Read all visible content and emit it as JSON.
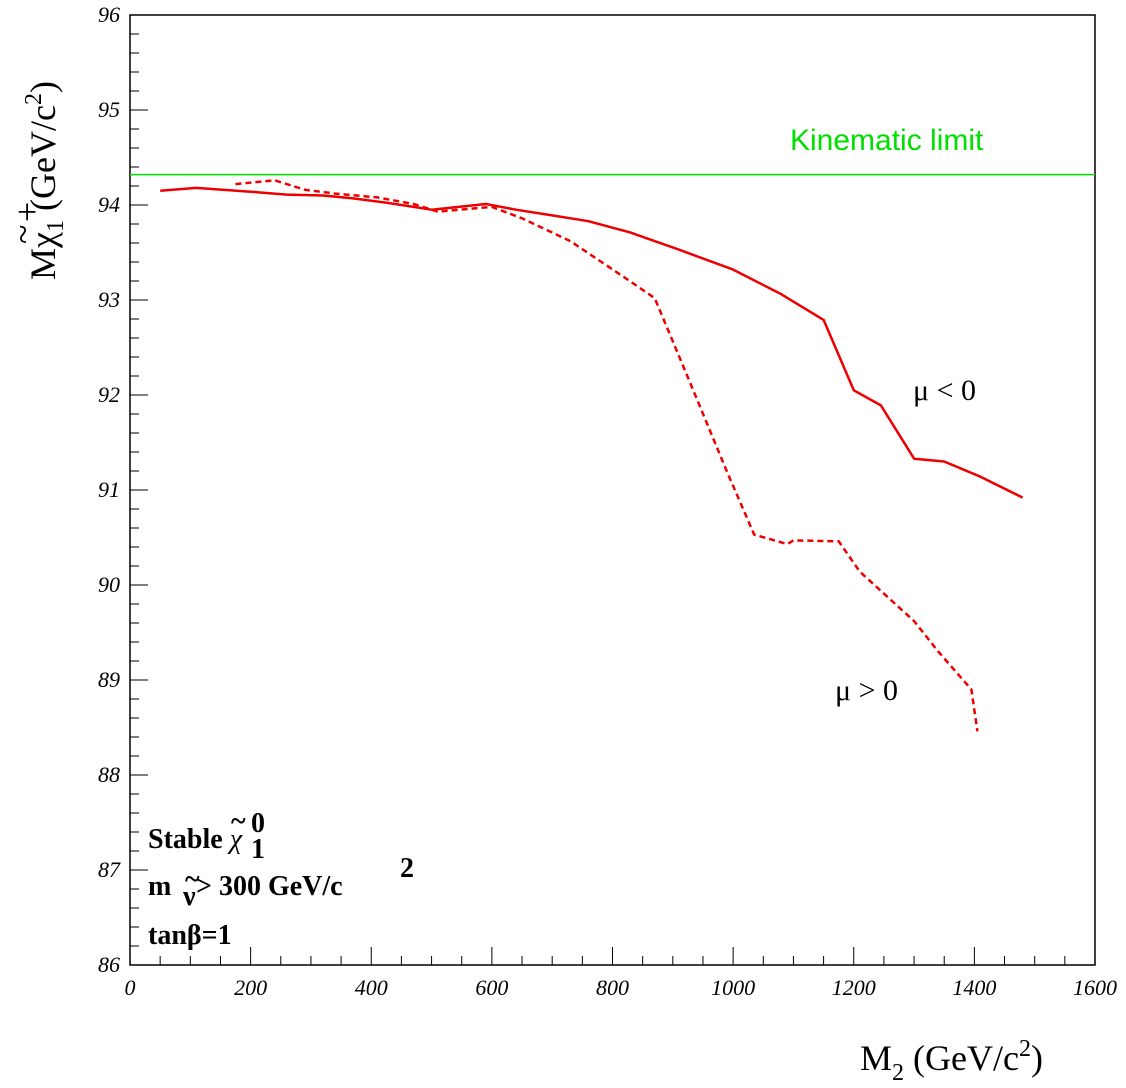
{
  "chart_data": {
    "type": "line",
    "xlabel_main": "M",
    "xlabel_sub": "2",
    "xlabel_unit_pre": " (GeV/c",
    "xlabel_unit_sup": "2",
    "xlabel_unit_post": ")",
    "ylabel_main": "M",
    "ylabel_chi": "χ",
    "ylabel_tilde": "~",
    "ylabel_sup": "+",
    "ylabel_sub": "1",
    "ylabel_unit_pre": " (GeV/c",
    "ylabel_unit_sup": "2",
    "ylabel_unit_post": ")",
    "xlim": [
      0,
      1600
    ],
    "ylim": [
      86,
      96
    ],
    "xticks": [
      "0",
      "200",
      "400",
      "600",
      "800",
      "1000",
      "1200",
      "1400",
      "1600"
    ],
    "yticks": [
      "86",
      "87",
      "88",
      "89",
      "90",
      "91",
      "92",
      "93",
      "94",
      "95",
      "96"
    ],
    "kinematic_limit": {
      "y": 94.32,
      "label": "Kinematic limit",
      "color": "#00e000"
    },
    "series": [
      {
        "label": "μ < 0",
        "style": "solid",
        "color": "#ee0000",
        "x": [
          50,
          110,
          200,
          260,
          320,
          370,
          430,
          500,
          590,
          640,
          700,
          760,
          830,
          910,
          1000,
          1080,
          1150,
          1200,
          1245,
          1300,
          1350,
          1410,
          1480
        ],
        "y": [
          94.15,
          94.18,
          94.14,
          94.11,
          94.1,
          94.07,
          94.02,
          93.95,
          94.01,
          93.95,
          93.89,
          93.83,
          93.71,
          93.53,
          93.32,
          93.06,
          92.79,
          92.05,
          91.89,
          91.33,
          91.3,
          91.14,
          90.92
        ]
      },
      {
        "label": "μ > 0",
        "style": "dashed",
        "color": "#ee0000",
        "x": [
          175,
          240,
          290,
          340,
          410,
          470,
          510,
          600,
          650,
          730,
          810,
          870,
          930,
          990,
          1035,
          1090,
          1100,
          1175,
          1210,
          1250,
          1300,
          1340,
          1395,
          1405
        ],
        "y": [
          94.22,
          94.26,
          94.16,
          94.12,
          94.08,
          94.01,
          93.93,
          93.98,
          93.86,
          93.62,
          93.28,
          93.02,
          92.11,
          91.19,
          90.53,
          90.43,
          90.47,
          90.46,
          90.14,
          89.91,
          89.62,
          89.3,
          88.9,
          88.46
        ]
      }
    ],
    "annotations": {
      "mu_neg": "μ < 0",
      "mu_pos": "μ > 0"
    },
    "info_box": {
      "line1_text": "Stable ",
      "line1_chi": "χ",
      "line1_tilde": "~",
      "line1_sup": "0",
      "line1_sub": "1",
      "line2_m": "m",
      "line2_nu_tilde": "~",
      "line2_nu": "ν",
      "line2_rest": " > 300 GeV/c",
      "line2_sup": "2",
      "line3": "tanβ=1"
    }
  }
}
